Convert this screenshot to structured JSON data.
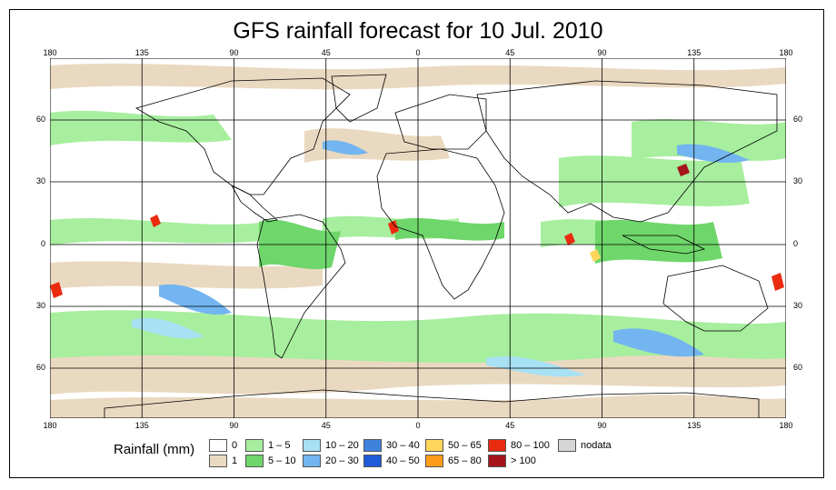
{
  "title": "GFS rainfall forecast for 10 Jul. 2010",
  "top_ticks": [
    "180",
    "135",
    "90",
    "45",
    "0",
    "45",
    "90",
    "135",
    "180"
  ],
  "bottom_ticks": [
    "180",
    "135",
    "90",
    "45",
    "0",
    "45",
    "90",
    "135",
    "180"
  ],
  "left_ticks": [
    "60",
    "30",
    "0",
    "30",
    "60"
  ],
  "right_ticks": [
    "60",
    "30",
    "0",
    "30",
    "60"
  ],
  "legend": {
    "title": "Rainfall (mm)",
    "items": [
      {
        "label": "0",
        "color": "#ffffff"
      },
      {
        "label": "1",
        "color": "#ead9c1"
      },
      {
        "label": "1 – 5",
        "color": "#a7ee9e"
      },
      {
        "label": "5 – 10",
        "color": "#6ed66a"
      },
      {
        "label": "10 – 20",
        "color": "#a8e1f4"
      },
      {
        "label": "20 – 30",
        "color": "#72b5f0"
      },
      {
        "label": "30 – 40",
        "color": "#3d83de"
      },
      {
        "label": "40 – 50",
        "color": "#1d5bd9"
      },
      {
        "label": "50 – 65",
        "color": "#ffd65c"
      },
      {
        "label": "65 – 80",
        "color": "#ff9b1a"
      },
      {
        "label": "80 – 100",
        "color": "#ea2b10"
      },
      {
        "label": "> 100",
        "color": "#a5141b"
      },
      {
        "label": "nodata",
        "color": "#d6d6d6"
      }
    ]
  },
  "colors": {
    "land_outline": "#000000",
    "grid": "#000000"
  }
}
